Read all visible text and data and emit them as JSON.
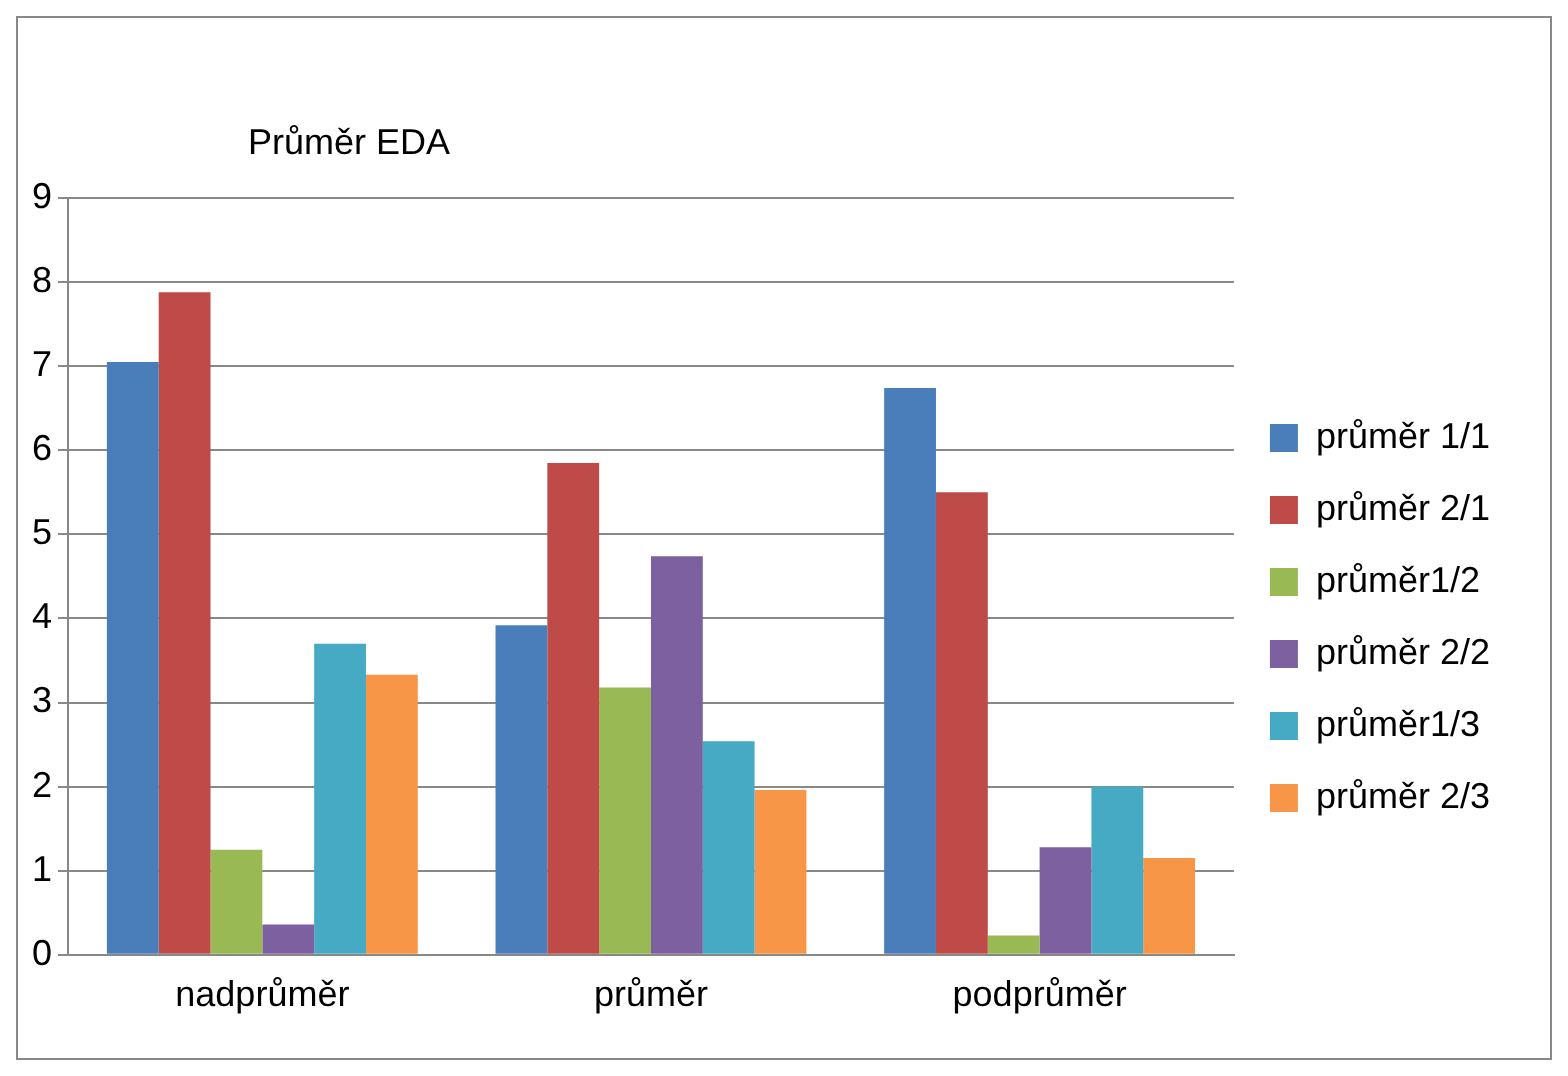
{
  "chart_data": {
    "type": "bar",
    "title": "Průměr EDA",
    "categories": [
      "nadprůměr",
      "průměr",
      "podprůměr"
    ],
    "series": [
      {
        "name": "průměr 1/1",
        "color": "#4a7ebb",
        "values": [
          7.05,
          3.92,
          6.74
        ]
      },
      {
        "name": "průměr 2/1",
        "color": "#be4b48",
        "values": [
          7.88,
          5.85,
          5.5
        ]
      },
      {
        "name": "průměr1/2",
        "color": "#98b954",
        "values": [
          1.25,
          3.18,
          0.23
        ]
      },
      {
        "name": "průměr 2/2",
        "color": "#7d60a0",
        "values": [
          0.36,
          4.74,
          1.28
        ]
      },
      {
        "name": "průměr1/3",
        "color": "#46aac5",
        "values": [
          3.7,
          2.54,
          2.0
        ]
      },
      {
        "name": "průměr 2/3",
        "color": "#f79646",
        "values": [
          3.33,
          1.96,
          1.15
        ]
      }
    ],
    "ylim": [
      0,
      9
    ],
    "yticks": [
      0,
      1,
      2,
      3,
      4,
      5,
      6,
      7,
      8,
      9
    ],
    "grid": "y",
    "legend": "right"
  }
}
